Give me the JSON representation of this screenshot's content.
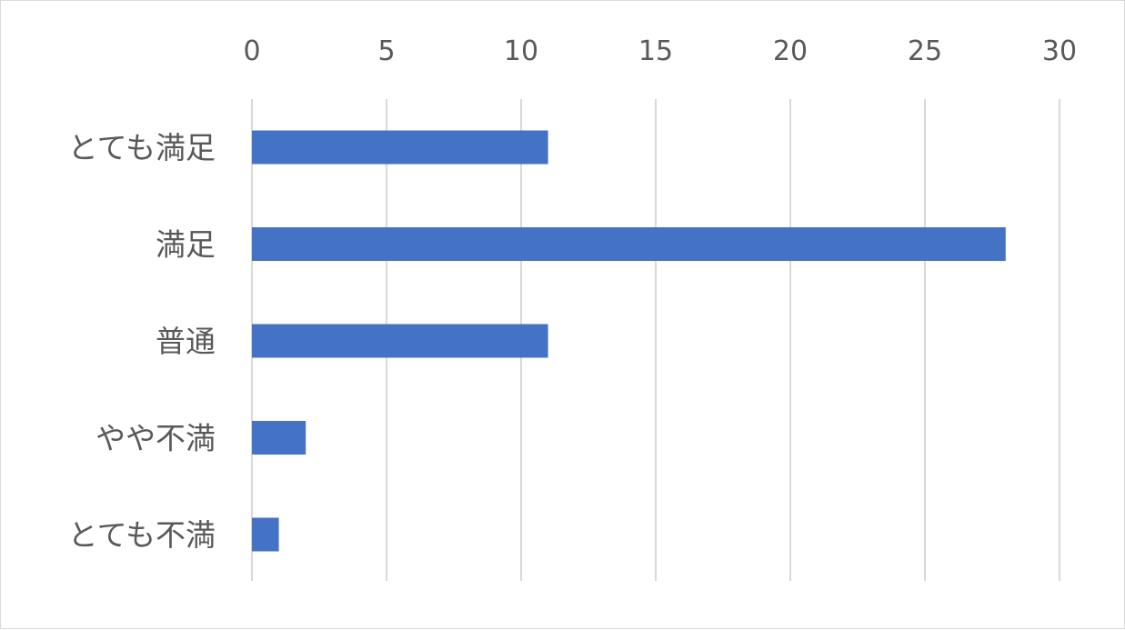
{
  "chart_data": {
    "type": "bar",
    "orientation": "horizontal",
    "categories": [
      "とても満足",
      "満足",
      "普通",
      "やや不満",
      "とても不満"
    ],
    "values": [
      11,
      28,
      11,
      2,
      1
    ],
    "xlim": [
      0,
      30
    ],
    "x_ticks": [
      "0",
      "5",
      "10",
      "15",
      "20",
      "25",
      "30"
    ],
    "x_axis_position": "top",
    "grid": true,
    "legend": "none",
    "bar_color": "#4472c4",
    "grid_color": "#d9d9d9",
    "text_color": "#595959"
  }
}
